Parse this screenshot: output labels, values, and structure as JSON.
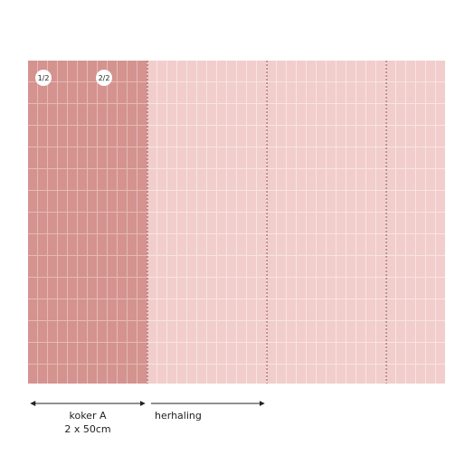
{
  "panels": {
    "badges": [
      "1/2",
      "2/2"
    ]
  },
  "legend": {
    "koker": {
      "label": "koker A",
      "size": "2 x 50cm"
    },
    "repeat": {
      "label": "herhaling"
    }
  }
}
